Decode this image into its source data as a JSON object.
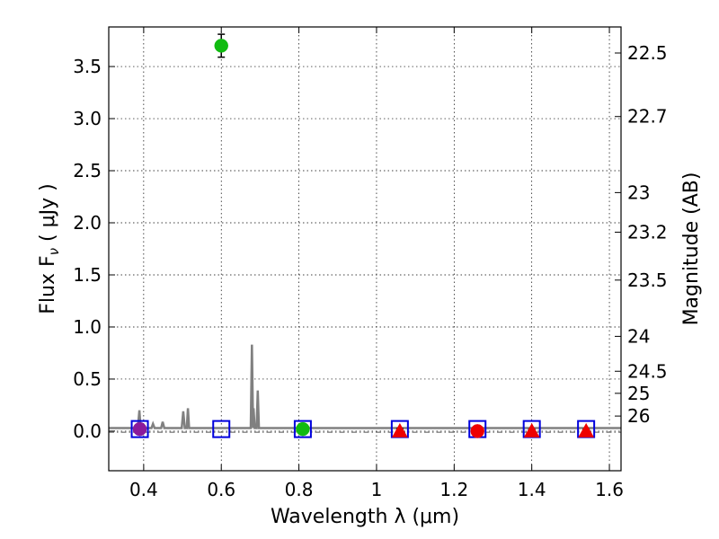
{
  "chart_data": {
    "type": "scatter",
    "xlabel": "Wavelength  λ (μm)",
    "ylabel": "Flux  F",
    "ylabel_sub": "ν",
    "ylabel_unit": " ( μJy )",
    "y2label": "Magnitude (AB)",
    "xlim": [
      0.31,
      1.63
    ],
    "ylim": [
      -0.38,
      3.88
    ],
    "grid": true,
    "x_ticks": [
      {
        "value": 0.4,
        "label": "0.4"
      },
      {
        "value": 0.6,
        "label": "0.6"
      },
      {
        "value": 0.8,
        "label": "0.8"
      },
      {
        "value": 1.0,
        "label": "1"
      },
      {
        "value": 1.2,
        "label": "1.2"
      },
      {
        "value": 1.4,
        "label": "1.4"
      },
      {
        "value": 1.6,
        "label": "1.6"
      }
    ],
    "y_ticks": [
      {
        "value": 0.0,
        "label": "0.0"
      },
      {
        "value": 0.5,
        "label": "0.5"
      },
      {
        "value": 1.0,
        "label": "1.0"
      },
      {
        "value": 1.5,
        "label": "1.5"
      },
      {
        "value": 2.0,
        "label": "2.0"
      },
      {
        "value": 2.5,
        "label": "2.5"
      },
      {
        "value": 3.0,
        "label": "3.0"
      },
      {
        "value": 3.5,
        "label": "3.5"
      }
    ],
    "magnitude_ticks": [
      {
        "label": "22.5",
        "flux": 3.63
      },
      {
        "label": "22.7",
        "flux": 3.02
      },
      {
        "label": "23",
        "flux": 2.29
      },
      {
        "label": "23.2",
        "flux": 1.91
      },
      {
        "label": "23.5",
        "flux": 1.45
      },
      {
        "label": "24",
        "flux": 0.91
      },
      {
        "label": "24.5",
        "flux": 0.575
      },
      {
        "label": "25",
        "flux": 0.363
      },
      {
        "label": "26",
        "flux": 0.145
      }
    ],
    "reference_line": {
      "y": -0.01,
      "style": "dash-dot",
      "color": "#555555"
    },
    "model_spectrum": {
      "name": "model",
      "color": "#808080",
      "baseline": 0.03,
      "points": [
        [
          0.31,
          0.03
        ],
        [
          0.385,
          0.03
        ],
        [
          0.389,
          0.2
        ],
        [
          0.392,
          0.03
        ],
        [
          0.42,
          0.03
        ],
        [
          0.424,
          0.07
        ],
        [
          0.428,
          0.03
        ],
        [
          0.445,
          0.03
        ],
        [
          0.449,
          0.09
        ],
        [
          0.453,
          0.03
        ],
        [
          0.498,
          0.03
        ],
        [
          0.502,
          0.19
        ],
        [
          0.506,
          0.03
        ],
        [
          0.511,
          0.03
        ],
        [
          0.514,
          0.22
        ],
        [
          0.517,
          0.03
        ],
        [
          0.676,
          0.03
        ],
        [
          0.679,
          0.83
        ],
        [
          0.682,
          0.03
        ],
        [
          0.683,
          0.22
        ],
        [
          0.686,
          0.03
        ],
        [
          0.691,
          0.03
        ],
        [
          0.694,
          0.39
        ],
        [
          0.697,
          0.03
        ],
        [
          1.63,
          0.03
        ]
      ]
    },
    "model_photometry": {
      "name": "model photometry",
      "marker": "square",
      "color": "#0000dd",
      "points": [
        {
          "x": 0.39,
          "y": 0.02
        },
        {
          "x": 0.6,
          "y": 0.02
        },
        {
          "x": 0.81,
          "y": 0.02
        },
        {
          "x": 1.06,
          "y": 0.02
        },
        {
          "x": 1.26,
          "y": 0.02
        },
        {
          "x": 1.4,
          "y": 0.02
        },
        {
          "x": 1.54,
          "y": 0.02
        }
      ]
    },
    "observed": [
      {
        "x": 0.39,
        "y": 0.02,
        "err": 0.04,
        "marker": "circle",
        "color": "#8b1a9b"
      },
      {
        "x": 0.6,
        "y": 3.7,
        "err": 0.11,
        "marker": "circle",
        "color": "#11bb11"
      },
      {
        "x": 0.81,
        "y": 0.02,
        "err": 0.01,
        "marker": "circle",
        "color": "#11bb11"
      },
      {
        "x": 1.06,
        "y": 0.0,
        "err": 0.025,
        "marker": "triangle",
        "color": "#ee0000"
      },
      {
        "x": 1.26,
        "y": 0.0,
        "err": 0.035,
        "marker": "circle",
        "color": "#ee0000"
      },
      {
        "x": 1.4,
        "y": 0.0,
        "err": 0.02,
        "marker": "triangle",
        "color": "#ee0000"
      },
      {
        "x": 1.54,
        "y": 0.0,
        "err": 0.02,
        "marker": "triangle",
        "color": "#ee0000"
      }
    ]
  }
}
